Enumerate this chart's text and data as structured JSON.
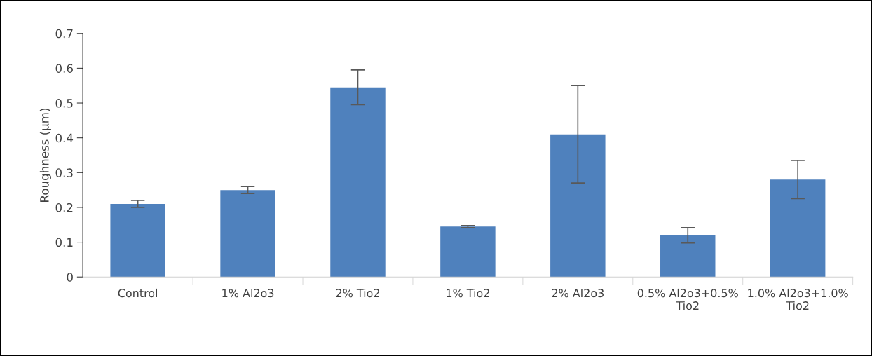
{
  "chart_data": {
    "type": "bar",
    "ylabel": "Roughness (µm)",
    "categories": [
      "Control",
      "1% Al2o3",
      "2% Tio2",
      "1% Tio2",
      "2% Al2o3",
      "0.5% Al2o3+0.5% Tio2",
      "1.0% Al2o3+1.0% Tio2"
    ],
    "values": [
      0.21,
      0.25,
      0.545,
      0.145,
      0.41,
      0.12,
      0.28
    ],
    "errors": [
      0.01,
      0.01,
      0.05,
      0.003,
      0.14,
      0.022,
      0.055
    ],
    "color": "#4f81bd",
    "ylim": [
      0,
      0.7
    ],
    "yticks": [
      {
        "value": 0,
        "label": "0"
      },
      0.1,
      0.2,
      0.3,
      0.4,
      0.5,
      0.6,
      0.7
    ],
    "grid": false,
    "legend": false
  }
}
